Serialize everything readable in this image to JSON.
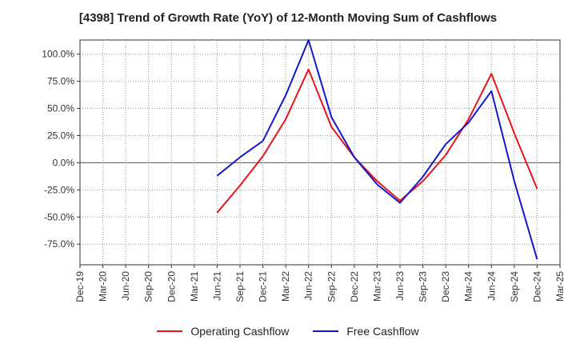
{
  "chart_data": {
    "type": "line",
    "title": "[4398]  Trend of Growth Rate (YoY) of 12-Month Moving Sum of Cashflows",
    "xlabel": "",
    "ylabel": "",
    "x": [
      "Dec-19",
      "Mar-20",
      "Jun-20",
      "Sep-20",
      "Dec-20",
      "Mar-21",
      "Jun-21",
      "Sep-21",
      "Dec-21",
      "Mar-22",
      "Jun-22",
      "Sep-22",
      "Dec-22",
      "Mar-23",
      "Jun-23",
      "Sep-23",
      "Dec-23",
      "Mar-24",
      "Jun-24",
      "Sep-24",
      "Dec-24",
      "Mar-25"
    ],
    "yticks": [
      "100.0%",
      "75.0%",
      "50.0%",
      "25.0%",
      "0.0%",
      "-25.0%",
      "-50.0%",
      "-75.0%"
    ],
    "ylim": [
      -94,
      113
    ],
    "grid": true,
    "legend_position": "bottom",
    "series": [
      {
        "name": "Operating Cashflow",
        "color": "#e8141b",
        "values": [
          null,
          null,
          null,
          null,
          null,
          null,
          -46,
          -21,
          6,
          40,
          86,
          33,
          5,
          -17,
          -35,
          -17,
          7,
          40,
          82,
          27,
          -24,
          null
        ]
      },
      {
        "name": "Free Cashflow",
        "color": "#1418cc",
        "values": [
          null,
          null,
          null,
          null,
          null,
          null,
          -12,
          5,
          20,
          62,
          113,
          42,
          5,
          -20,
          -37,
          -13,
          17,
          37,
          66,
          -17,
          -89,
          null
        ]
      }
    ]
  }
}
